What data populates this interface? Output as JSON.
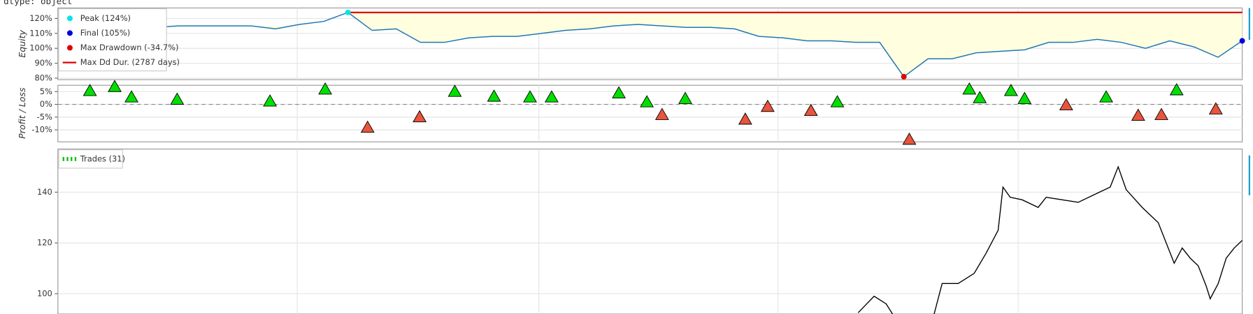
{
  "header_text": "dtype: object",
  "chart_data": [
    {
      "type": "line",
      "ylabel": "Equity",
      "values": [
        112,
        113,
        114,
        114,
        114,
        115,
        115,
        115,
        115,
        113,
        116,
        118,
        124,
        112,
        113,
        104,
        104,
        107,
        108,
        108,
        110,
        112,
        113,
        115,
        116,
        115,
        114,
        114,
        113,
        108,
        107,
        105,
        105,
        104,
        104,
        81,
        93,
        93,
        97,
        98,
        99,
        104,
        104,
        106,
        104,
        100,
        105,
        101,
        94,
        105
      ],
      "color": "#1f77b4",
      "fill_color": "#ffffe0",
      "markers": [
        {
          "name": "Peak (124%)",
          "index": 12,
          "value": 124,
          "color": "#00e5e5"
        },
        {
          "name": "Final (105%)",
          "index": 49,
          "value": 105,
          "color": "#0000dd"
        },
        {
          "name": "Max Drawdown (-34.7%)",
          "index": 35,
          "value": 81,
          "color": "#e00000"
        }
      ],
      "dd_line": {
        "name": "Max Dd Dur. (2787 days)",
        "color": "#e00000"
      },
      "xlim": [
        0,
        1480
      ],
      "xticks": [
        299,
        601,
        900,
        1200
      ],
      "ylim": [
        79,
        127
      ],
      "yticks": [
        {
          "value": 80,
          "label": "80%"
        },
        {
          "value": 90,
          "label": "90%"
        },
        {
          "value": 100,
          "label": "100%"
        },
        {
          "value": 110,
          "label": "110%"
        },
        {
          "value": 120,
          "label": "120%"
        }
      ],
      "grid": true
    },
    {
      "type": "scatter",
      "ylabel": "Profit / Loss",
      "up_color": "#00e000",
      "down_color": "#e9543c",
      "x": [
        40,
        71,
        92,
        149,
        265,
        334,
        387,
        452,
        496,
        545,
        590,
        617,
        701,
        736,
        755,
        784,
        859,
        887,
        941,
        974,
        1064,
        1139,
        1152,
        1191,
        1208,
        1260,
        1310,
        1350,
        1379,
        1398,
        1447
      ],
      "values": [
        5.3,
        6.9,
        2.8,
        1.9,
        1.2,
        5.9,
        -9.1,
        -5.0,
        5.0,
        3.1,
        2.8,
        2.8,
        4.4,
        0.9,
        -4.1,
        2.2,
        -5.9,
        -0.9,
        -2.5,
        0.9,
        -13.8,
        5.9,
        2.5,
        5.3,
        2.2,
        -0.3,
        2.8,
        -4.4,
        -4.1,
        5.6,
        -1.9
      ],
      "xlim": [
        0,
        1480
      ],
      "xticks": [
        299,
        601,
        900,
        1200
      ],
      "ylim": [
        -14.7,
        7.5
      ],
      "yticks": [
        {
          "value": -10,
          "label": "-10%"
        },
        {
          "value": -5,
          "label": "-5%"
        },
        {
          "value": 0,
          "label": "0%"
        },
        {
          "value": 5,
          "label": "5%"
        }
      ],
      "grid": true
    },
    {
      "type": "line",
      "legend": "Trades (31)",
      "legend_color": "#00c000",
      "color": "#000000",
      "x": [
        1000,
        1020,
        1035,
        1043,
        1080,
        1095,
        1105,
        1125,
        1145,
        1160,
        1175,
        1181,
        1190,
        1205,
        1225,
        1235,
        1255,
        1275,
        1295,
        1315,
        1325,
        1335,
        1355,
        1375,
        1395,
        1405,
        1415,
        1425,
        1435,
        1440,
        1450,
        1460,
        1470,
        1480
      ],
      "values": [
        92.5,
        99,
        96,
        92,
        null,
        92,
        104,
        104,
        108,
        116,
        125,
        142,
        138,
        137,
        134,
        138,
        137,
        136,
        139,
        142,
        150,
        141,
        134,
        128,
        112,
        118,
        114,
        111,
        103,
        98,
        104,
        114,
        118,
        121
      ],
      "xlim": [
        0,
        1480
      ],
      "xticks": [
        299,
        601,
        900,
        1200
      ],
      "ylim": [
        92,
        157
      ],
      "yticks": [
        100,
        120,
        140
      ],
      "grid": true
    }
  ]
}
